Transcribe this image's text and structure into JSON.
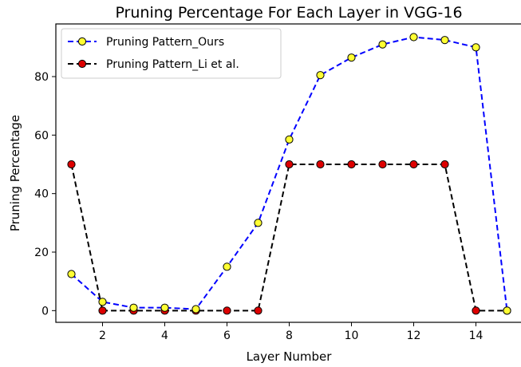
{
  "chart_data": {
    "type": "line",
    "title": "Pruning Percentage For Each Layer in VGG-16",
    "xlabel": "Layer Number",
    "ylabel": "Pruning Percentage",
    "xlim": [
      0.5,
      15.5
    ],
    "ylim": [
      -4,
      98
    ],
    "xticks": [
      2,
      4,
      6,
      8,
      10,
      12,
      14
    ],
    "yticks": [
      0,
      20,
      40,
      60,
      80
    ],
    "grid": false,
    "legend_position": "top-left",
    "x": [
      1,
      2,
      3,
      4,
      5,
      6,
      7,
      8,
      9,
      10,
      11,
      12,
      13,
      14,
      15
    ],
    "series": [
      {
        "name": "Pruning Pattern_Ours",
        "values": [
          12.5,
          3,
          1,
          1,
          0.5,
          15,
          30,
          58.5,
          80.5,
          86.5,
          91,
          93.5,
          92.5,
          90,
          0
        ],
        "line_color": "#0000ff",
        "marker_color": "#ffff33",
        "line_style": "dashed",
        "marker": "circle"
      },
      {
        "name": "Pruning Pattern_Li et al.",
        "values": [
          50,
          0,
          0,
          0,
          0,
          0,
          0,
          50,
          50,
          50,
          50,
          50,
          50,
          0,
          0
        ],
        "line_color": "#000000",
        "marker_color": "#dd0000",
        "line_style": "dashed",
        "marker": "circle"
      }
    ]
  }
}
